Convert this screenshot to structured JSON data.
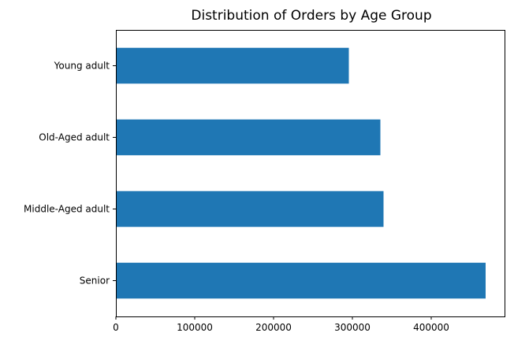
{
  "chart_data": {
    "type": "bar",
    "orientation": "horizontal",
    "title": "Distribution of Orders by Age Group",
    "xlabel": "",
    "ylabel": "",
    "categories": [
      "Senior",
      "Middle-Aged adult",
      "Old-Aged adult",
      "Young adult"
    ],
    "values": [
      469000,
      339500,
      335500,
      295500
    ],
    "xlim": [
      0,
      493000
    ],
    "xticks": [
      0,
      100000,
      200000,
      300000,
      400000
    ],
    "xtick_labels": [
      "0",
      "100000",
      "200000",
      "300000",
      "400000"
    ],
    "grid": false,
    "legend": "none",
    "bar_color": "#1f77b4"
  }
}
